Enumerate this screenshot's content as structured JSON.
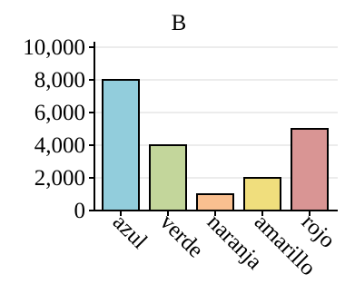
{
  "chart_data": {
    "type": "bar",
    "title": "B",
    "xlabel": "",
    "ylabel": "",
    "categories": [
      "azul",
      "verde",
      "naranja",
      "amarillo",
      "rojo"
    ],
    "values": [
      8000,
      4000,
      1000,
      2000,
      5000
    ],
    "colors": [
      "#92cddc",
      "#c3d69b",
      "#fac090",
      "#f0de7d",
      "#d99594"
    ],
    "ylim": [
      0,
      10000
    ],
    "yticks": [
      0,
      2000,
      4000,
      6000,
      8000,
      10000
    ],
    "ytick_labels": [
      "0",
      "2,000",
      "4,000",
      "6,000",
      "8,000",
      "10,000"
    ],
    "grid": true,
    "legend": "none"
  }
}
